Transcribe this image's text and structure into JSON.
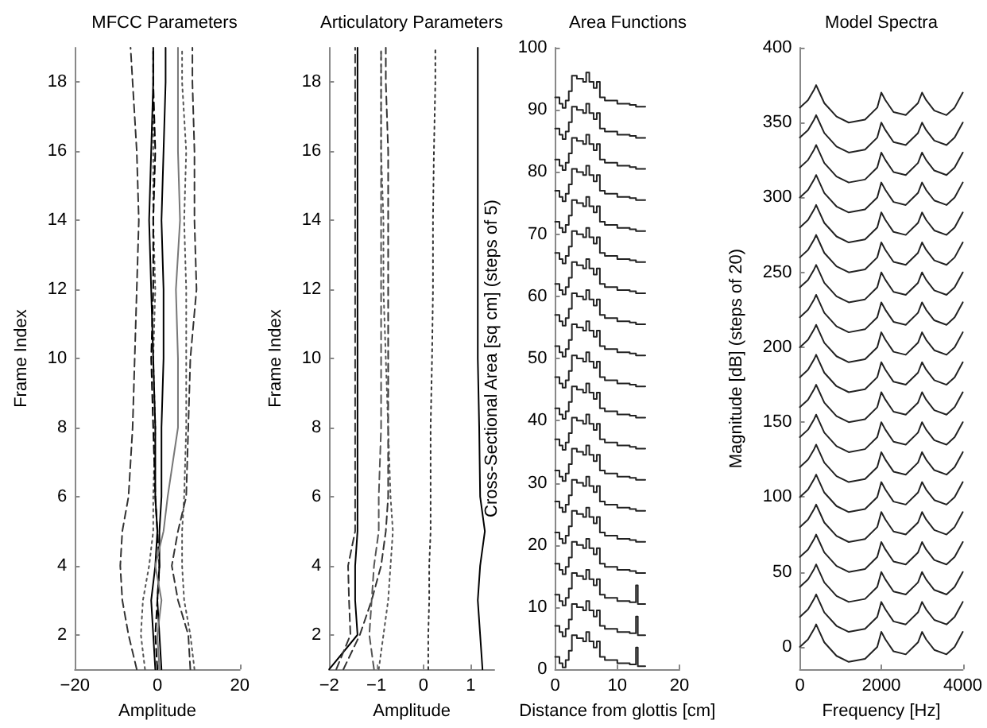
{
  "chart_data": [
    {
      "type": "line",
      "title": "MFCC Parameters",
      "xlabel": "Amplitude",
      "ylabel": "Frame Index",
      "orientation": "horizontal",
      "marker": "none",
      "xlim": [
        -20,
        20
      ],
      "xticks": [
        -20,
        0,
        20
      ],
      "ylim": [
        1,
        19
      ],
      "yticks": [
        2,
        4,
        6,
        8,
        10,
        12,
        14,
        16,
        18
      ],
      "x": [
        1,
        2,
        3,
        4,
        5,
        6,
        8,
        10,
        12,
        14,
        16,
        18,
        19
      ],
      "series": [
        {
          "color": "#333333",
          "line_style": "dashed",
          "values": [
            -5,
            -7,
            -8.5,
            -9,
            -8.5,
            -7,
            -6,
            -5.5,
            -5,
            -4.5,
            -5,
            -6,
            -6.5
          ]
        },
        {
          "color": "#555555",
          "line_style": "dotted",
          "values": [
            -3,
            -4,
            -3.5,
            -2,
            -1,
            -1,
            -0.5,
            -1,
            -0.5,
            -1,
            -1,
            -1,
            -1
          ]
        },
        {
          "color": "#000000",
          "line_style": "solid",
          "values": [
            -0.5,
            -1,
            -1.5,
            -0.5,
            0,
            -0.5,
            -0.5,
            -1,
            -1.5,
            -2,
            -1.5,
            -1,
            -1
          ]
        },
        {
          "color": "#000000",
          "line_style": "dashed",
          "values": [
            0,
            -0.5,
            0,
            0.5,
            0,
            -0.5,
            -1,
            -1.5,
            -1,
            -1,
            -0.5,
            -1,
            -1
          ]
        },
        {
          "color": "#000000",
          "line_style": "solid",
          "values": [
            1,
            0.5,
            0,
            0.5,
            0.5,
            1,
            1,
            1.5,
            1.5,
            1,
            1.5,
            2,
            2
          ]
        },
        {
          "color": "#777777",
          "line_style": "solid",
          "values": [
            0.5,
            0,
            1,
            -0.5,
            1.5,
            2.5,
            5,
            5,
            4.5,
            5.5,
            5,
            5,
            5
          ]
        },
        {
          "color": "#555555",
          "line_style": "dotted",
          "values": [
            9,
            8,
            6.5,
            6,
            6,
            6.5,
            7,
            7,
            7,
            6.5,
            7,
            6,
            6
          ]
        },
        {
          "color": "#333333",
          "line_style": "dashed",
          "values": [
            8,
            7.5,
            5,
            3.5,
            5,
            7,
            7.5,
            8,
            9.5,
            9,
            9,
            8.5,
            8.5
          ]
        }
      ]
    },
    {
      "type": "line",
      "title": "Articulatory Parameters",
      "xlabel": "Amplitude",
      "ylabel": "Frame Index",
      "orientation": "horizontal",
      "marker": "none",
      "xlim": [
        -2,
        1.5
      ],
      "xticks": [
        -2,
        -1,
        0,
        1
      ],
      "ylim": [
        1,
        19
      ],
      "yticks": [
        2,
        4,
        6,
        8,
        10,
        12,
        14,
        16,
        18
      ],
      "x": [
        1,
        2,
        3,
        4,
        5,
        6,
        8,
        10,
        12,
        14,
        16,
        18,
        19
      ],
      "series": [
        {
          "color": "#000000",
          "line_style": "solid",
          "values": [
            -2,
            -1.4,
            -1.45,
            -1.45,
            -1.4,
            -1.4,
            -1.4,
            -1.4,
            -1.4,
            -1.4,
            -1.4,
            -1.4,
            -1.4
          ]
        },
        {
          "color": "#333333",
          "line_style": "dashed",
          "values": [
            -1.85,
            -1.55,
            -1.58,
            -1.6,
            -1.45,
            -1.45,
            -1.45,
            -1.45,
            -1.45,
            -1.45,
            -1.45,
            -1.45,
            -1.45
          ]
        },
        {
          "color": "#333333",
          "line_style": "dashed",
          "values": [
            -1.7,
            -1.35,
            -1.1,
            -0.9,
            -0.8,
            -0.75,
            -0.75,
            -0.75,
            -0.75,
            -0.75,
            -0.75,
            -0.8,
            -0.8
          ]
        },
        {
          "color": "#555555",
          "line_style": "dashed",
          "values": [
            -1.05,
            -1.15,
            -1.1,
            -1.05,
            -0.95,
            -0.95,
            -0.9,
            -0.9,
            -0.9,
            -0.9,
            -0.9,
            -0.9,
            -0.9
          ]
        },
        {
          "color": "#555555",
          "line_style": "dotted",
          "values": [
            -0.95,
            -0.85,
            -0.75,
            -0.7,
            -0.65,
            -0.7,
            -0.75,
            -0.8,
            -0.85,
            -0.85,
            -0.9,
            -0.9,
            -0.9
          ]
        },
        {
          "color": "#333333",
          "line_style": "dotted",
          "values": [
            0.1,
            0.1,
            0.12,
            0.12,
            0.15,
            0.15,
            0.15,
            0.18,
            0.2,
            0.2,
            0.22,
            0.25,
            0.25
          ]
        },
        {
          "color": "#000000",
          "line_style": "solid",
          "values": [
            1.25,
            1.2,
            1.15,
            1.2,
            1.3,
            1.2,
            1.18,
            1.15,
            1.15,
            1.15,
            1.15,
            1.15,
            1.15
          ]
        }
      ]
    },
    {
      "type": "step",
      "title": "Area Functions",
      "xlabel": "Distance from glottis [cm]",
      "ylabel": "Cross-Sectional Area [sq cm] (steps of 5)",
      "marker": "none",
      "line_style": "solid",
      "xlim": [
        0,
        20
      ],
      "xticks": [
        0,
        10,
        20
      ],
      "ylim": [
        0,
        100
      ],
      "yticks": [
        0,
        10,
        20,
        30,
        40,
        50,
        60,
        70,
        80,
        90,
        100
      ],
      "x": [
        0,
        0.7,
        1.2,
        1.7,
        2.2,
        2.7,
        3.5,
        4.5,
        5,
        5.5,
        6.2,
        6.7,
        7.2,
        8,
        10,
        12,
        13,
        13.3,
        14.5
      ],
      "series": [
        {
          "color": "#222222",
          "values": [
            2,
            1,
            0.3,
            1.5,
            3,
            5.5,
            5,
            4.5,
            6,
            4.5,
            3.5,
            4.5,
            2,
            1.5,
            1,
            0.8,
            3.5,
            0.5,
            0.5
          ]
        },
        {
          "color": "#222222",
          "values": [
            7,
            6,
            5.3,
            6.5,
            8,
            10.5,
            10,
            9.5,
            11,
            9.5,
            8.5,
            9.5,
            7,
            6.5,
            6,
            5.8,
            8.5,
            5.5,
            5.5
          ]
        },
        {
          "color": "#222222",
          "values": [
            12,
            11,
            10.3,
            11.5,
            13,
            15.5,
            15,
            14.5,
            16,
            14.5,
            13.5,
            14.5,
            12,
            11.5,
            11,
            10.8,
            13.5,
            10.5,
            10.5
          ]
        },
        {
          "color": "#222222",
          "values": [
            17,
            16,
            15.3,
            16.5,
            18,
            20.5,
            20,
            19.5,
            21,
            19.5,
            18.5,
            19.5,
            17,
            16.5,
            16,
            15.8,
            15.5,
            15.5,
            15.5
          ]
        },
        {
          "color": "#222222",
          "values": [
            22,
            21,
            20.3,
            21.5,
            23,
            25.5,
            25,
            24.5,
            26,
            24.5,
            23.5,
            24.5,
            22,
            21.5,
            21,
            20.8,
            20.5,
            20.5,
            20.5
          ]
        },
        {
          "color": "#222222",
          "values": [
            27,
            26,
            25.3,
            26.5,
            28,
            30.5,
            30,
            29.5,
            31,
            29.5,
            28.5,
            29.5,
            27,
            26.5,
            26,
            25.8,
            25.5,
            25.5,
            25.5
          ]
        },
        {
          "color": "#222222",
          "values": [
            32,
            31,
            30.3,
            31.5,
            33,
            35.5,
            35,
            34.5,
            36,
            34.5,
            33.5,
            34.5,
            32,
            31.5,
            31,
            30.8,
            30.5,
            30.5,
            30.5
          ]
        },
        {
          "color": "#222222",
          "values": [
            37,
            36,
            35.3,
            36.5,
            38,
            40.5,
            40,
            39.5,
            41,
            39.5,
            38.5,
            39.5,
            37,
            36.5,
            36,
            35.8,
            35.5,
            35.5,
            35.5
          ]
        },
        {
          "color": "#222222",
          "values": [
            42,
            41,
            40.3,
            41.5,
            43,
            45.5,
            45,
            44.5,
            46,
            44.5,
            43.5,
            44.5,
            42,
            41.5,
            41,
            40.8,
            40.5,
            40.5,
            40.5
          ]
        },
        {
          "color": "#222222",
          "values": [
            47,
            46,
            45.3,
            46.5,
            48,
            50.5,
            50,
            49.5,
            51,
            49.5,
            48.5,
            49.5,
            47,
            46.5,
            46,
            45.8,
            45.5,
            45.5,
            45.5
          ]
        },
        {
          "color": "#222222",
          "values": [
            52,
            51,
            50.3,
            51.5,
            53,
            55.5,
            55,
            54.5,
            56,
            54.5,
            53.5,
            54.5,
            52,
            51.5,
            51,
            50.8,
            50.5,
            50.5,
            50.5
          ]
        },
        {
          "color": "#222222",
          "values": [
            57,
            56,
            55.3,
            56.5,
            58,
            60.5,
            60,
            59.5,
            61,
            59.5,
            58.5,
            59.5,
            57,
            56.5,
            56,
            55.8,
            55.5,
            55.5,
            55.5
          ]
        },
        {
          "color": "#222222",
          "values": [
            62,
            61,
            60.3,
            61.5,
            63,
            65.5,
            65,
            64.5,
            66,
            64.5,
            63.5,
            64.5,
            62,
            61.5,
            61,
            60.8,
            60.5,
            60.5,
            60.5
          ]
        },
        {
          "color": "#222222",
          "values": [
            67,
            66,
            65.3,
            66.5,
            68,
            70.5,
            70,
            69.5,
            71,
            69.5,
            68.5,
            69.5,
            67,
            66.5,
            66,
            65.8,
            65.5,
            65.5,
            65.5
          ]
        },
        {
          "color": "#222222",
          "values": [
            72,
            71,
            70.3,
            71.5,
            73,
            75.5,
            75,
            74.5,
            76,
            74.5,
            73.5,
            74.5,
            72,
            71.5,
            71,
            70.8,
            70.5,
            70.5,
            70.5
          ]
        },
        {
          "color": "#222222",
          "values": [
            77,
            76,
            75.3,
            76.5,
            78,
            80.5,
            80,
            79.5,
            81,
            79.5,
            78.5,
            79.5,
            77,
            76.5,
            76,
            75.8,
            75.5,
            75.5,
            75.5
          ]
        },
        {
          "color": "#222222",
          "values": [
            82,
            81,
            80.3,
            81.5,
            83,
            85.5,
            85,
            84.5,
            86,
            84.5,
            83.5,
            84.5,
            82,
            81.5,
            81,
            80.8,
            80.5,
            80.5,
            80.5
          ]
        },
        {
          "color": "#222222",
          "values": [
            87,
            86,
            85.3,
            86.5,
            88,
            90.5,
            90,
            89.5,
            91,
            89.5,
            88.5,
            89.5,
            87,
            86.5,
            86,
            85.8,
            85.5,
            85.5,
            85.5
          ]
        },
        {
          "color": "#222222",
          "values": [
            92,
            91,
            90.3,
            91.5,
            93,
            95.5,
            95,
            94.5,
            96,
            94.5,
            93.5,
            94.5,
            92,
            91.5,
            91,
            90.8,
            90.5,
            90.5,
            90.5
          ]
        }
      ]
    },
    {
      "type": "line",
      "title": "Model Spectra",
      "xlabel": "Frequency [Hz]",
      "ylabel": "Magnitude [dB] (steps of 20)",
      "marker": "none",
      "line_style": "solid",
      "xlim": [
        0,
        4000
      ],
      "xticks": [
        0,
        2000,
        4000
      ],
      "ylim": [
        -15,
        400
      ],
      "yticks": [
        0,
        50,
        100,
        150,
        200,
        250,
        300,
        350,
        400
      ],
      "x": [
        0,
        200,
        350,
        400,
        450,
        600,
        900,
        1200,
        1600,
        1900,
        2000,
        2100,
        2300,
        2600,
        2900,
        3000,
        3100,
        3300,
        3600,
        3800,
        4000
      ],
      "series": [
        {
          "color": "#222222",
          "values": [
            0,
            5,
            12,
            15,
            12,
            3,
            -6,
            -10,
            -8,
            0,
            10,
            5,
            -3,
            -5,
            3,
            10,
            5,
            -2,
            -5,
            0,
            10
          ]
        },
        {
          "color": "#222222",
          "values": [
            20,
            25,
            32,
            35,
            32,
            23,
            14,
            10,
            12,
            20,
            30,
            25,
            17,
            15,
            23,
            30,
            25,
            18,
            15,
            20,
            30
          ]
        },
        {
          "color": "#222222",
          "values": [
            40,
            45,
            52,
            55,
            52,
            43,
            34,
            30,
            32,
            40,
            50,
            45,
            37,
            35,
            43,
            50,
            45,
            38,
            35,
            40,
            50
          ]
        },
        {
          "color": "#222222",
          "values": [
            60,
            65,
            72,
            75,
            72,
            63,
            54,
            50,
            52,
            60,
            70,
            65,
            57,
            55,
            63,
            70,
            65,
            58,
            55,
            60,
            70
          ]
        },
        {
          "color": "#222222",
          "values": [
            80,
            85,
            92,
            95,
            92,
            83,
            74,
            70,
            72,
            80,
            90,
            85,
            77,
            75,
            83,
            90,
            85,
            78,
            75,
            80,
            90
          ]
        },
        {
          "color": "#222222",
          "values": [
            100,
            105,
            112,
            115,
            112,
            103,
            94,
            90,
            92,
            100,
            110,
            105,
            97,
            95,
            103,
            110,
            105,
            98,
            95,
            100,
            110
          ]
        },
        {
          "color": "#222222",
          "values": [
            120,
            125,
            132,
            135,
            132,
            123,
            114,
            110,
            112,
            120,
            130,
            125,
            117,
            115,
            123,
            130,
            125,
            118,
            115,
            120,
            130
          ]
        },
        {
          "color": "#222222",
          "values": [
            140,
            145,
            152,
            155,
            152,
            143,
            134,
            130,
            132,
            140,
            150,
            145,
            137,
            135,
            143,
            150,
            145,
            138,
            135,
            140,
            150
          ]
        },
        {
          "color": "#222222",
          "values": [
            160,
            165,
            172,
            175,
            172,
            163,
            154,
            150,
            152,
            160,
            170,
            165,
            157,
            155,
            163,
            170,
            165,
            158,
            155,
            160,
            170
          ]
        },
        {
          "color": "#222222",
          "values": [
            180,
            185,
            192,
            195,
            192,
            183,
            174,
            170,
            172,
            180,
            190,
            185,
            177,
            175,
            183,
            190,
            185,
            178,
            175,
            180,
            190
          ]
        },
        {
          "color": "#222222",
          "values": [
            200,
            205,
            212,
            215,
            212,
            203,
            194,
            190,
            192,
            200,
            210,
            205,
            197,
            195,
            203,
            210,
            205,
            198,
            195,
            200,
            210
          ]
        },
        {
          "color": "#222222",
          "values": [
            220,
            225,
            232,
            235,
            232,
            223,
            214,
            210,
            212,
            220,
            230,
            225,
            217,
            215,
            223,
            230,
            225,
            218,
            215,
            220,
            230
          ]
        },
        {
          "color": "#222222",
          "values": [
            240,
            245,
            252,
            255,
            252,
            243,
            234,
            230,
            232,
            240,
            250,
            245,
            237,
            235,
            243,
            250,
            245,
            238,
            235,
            240,
            250
          ]
        },
        {
          "color": "#222222",
          "values": [
            260,
            265,
            272,
            275,
            272,
            263,
            254,
            250,
            252,
            260,
            270,
            265,
            257,
            255,
            263,
            270,
            265,
            258,
            255,
            260,
            270
          ]
        },
        {
          "color": "#222222",
          "values": [
            280,
            285,
            292,
            295,
            292,
            283,
            274,
            270,
            272,
            280,
            290,
            285,
            277,
            275,
            283,
            290,
            285,
            278,
            275,
            280,
            290
          ]
        },
        {
          "color": "#222222",
          "values": [
            300,
            305,
            312,
            315,
            312,
            303,
            294,
            290,
            292,
            300,
            310,
            305,
            297,
            295,
            303,
            310,
            305,
            298,
            295,
            300,
            310
          ]
        },
        {
          "color": "#222222",
          "values": [
            320,
            325,
            332,
            335,
            332,
            323,
            314,
            310,
            312,
            320,
            330,
            325,
            317,
            315,
            323,
            330,
            325,
            318,
            315,
            320,
            330
          ]
        },
        {
          "color": "#222222",
          "values": [
            340,
            345,
            352,
            355,
            352,
            343,
            334,
            330,
            332,
            340,
            350,
            345,
            337,
            335,
            343,
            350,
            345,
            338,
            335,
            340,
            350
          ]
        },
        {
          "color": "#222222",
          "values": [
            360,
            365,
            372,
            375,
            372,
            363,
            354,
            350,
            352,
            360,
            370,
            365,
            357,
            355,
            363,
            370,
            365,
            358,
            355,
            360,
            370
          ]
        }
      ]
    }
  ]
}
